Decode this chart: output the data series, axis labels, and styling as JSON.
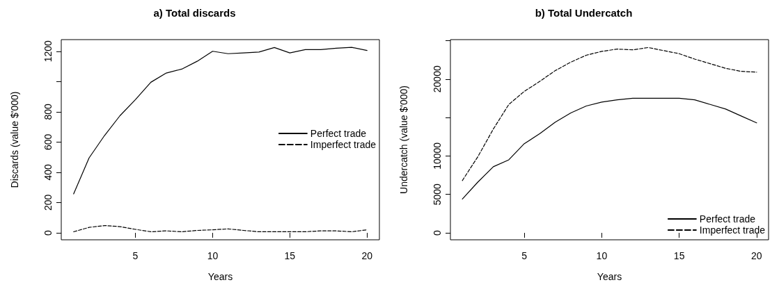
{
  "chart_data": [
    {
      "type": "line",
      "title": "a) Total discards",
      "xlabel": "Years",
      "ylabel": "Discards (value $'000)",
      "x": [
        1,
        2,
        3,
        4,
        5,
        6,
        7,
        8,
        9,
        10,
        11,
        12,
        13,
        14,
        15,
        16,
        17,
        18,
        19,
        20
      ],
      "xlim": [
        0.2,
        20.8
      ],
      "xticks": [
        5,
        10,
        15,
        20
      ],
      "ylim": [
        -46,
        1277
      ],
      "yticks": [
        0,
        200,
        400,
        600,
        800,
        {
          "value": 1000,
          "label": null
        },
        1200
      ],
      "grid": false,
      "legend": "right",
      "series": [
        {
          "name": "Perfect trade",
          "color": "#000000",
          "line_style": "solid",
          "values": [
            257,
            495,
            643,
            774,
            880,
            995,
            1056,
            1082,
            1134,
            1200,
            1184,
            1189,
            1195,
            1225,
            1189,
            1211,
            1211,
            1220,
            1226,
            1205
          ]
        },
        {
          "name": "Imperfect trade",
          "color": "#000000",
          "line_style": "dashed",
          "values": [
            7,
            36,
            48,
            41,
            23,
            7,
            13,
            7,
            16,
            20,
            26,
            16,
            7,
            7,
            7,
            7,
            13,
            13,
            7,
            20
          ]
        }
      ]
    },
    {
      "type": "line",
      "title": "b) Total Undercatch",
      "xlabel": "Years",
      "ylabel": "Undercatch (value $'000)",
      "x": [
        1,
        2,
        3,
        4,
        5,
        6,
        7,
        8,
        9,
        10,
        11,
        12,
        13,
        14,
        15,
        16,
        17,
        18,
        19,
        20
      ],
      "xlim": [
        0.23,
        20.77
      ],
      "xticks": [
        5,
        10,
        15,
        20
      ],
      "ylim": [
        -900,
        25130
      ],
      "yticks": [
        0,
        5000,
        10000,
        {
          "value": 15000,
          "label": null
        },
        20000,
        {
          "value": 25000,
          "label": null
        }
      ],
      "grid": false,
      "legend": "bottom right",
      "series": [
        {
          "name": "Perfect trade",
          "color": "#000000",
          "line_style": "solid",
          "values": [
            4400,
            6600,
            8600,
            9500,
            11600,
            12900,
            14400,
            15600,
            16500,
            17000,
            17300,
            17500,
            17500,
            17500,
            17500,
            17300,
            16700,
            16100,
            15200,
            14300
          ]
        },
        {
          "name": "Imperfect trade",
          "color": "#000000",
          "line_style": "dashed",
          "values": [
            6800,
            9900,
            13500,
            16700,
            18400,
            19700,
            21100,
            22200,
            23100,
            23600,
            23900,
            23800,
            24100,
            23700,
            23300,
            22600,
            22000,
            21400,
            21000,
            20900
          ]
        }
      ]
    }
  ]
}
